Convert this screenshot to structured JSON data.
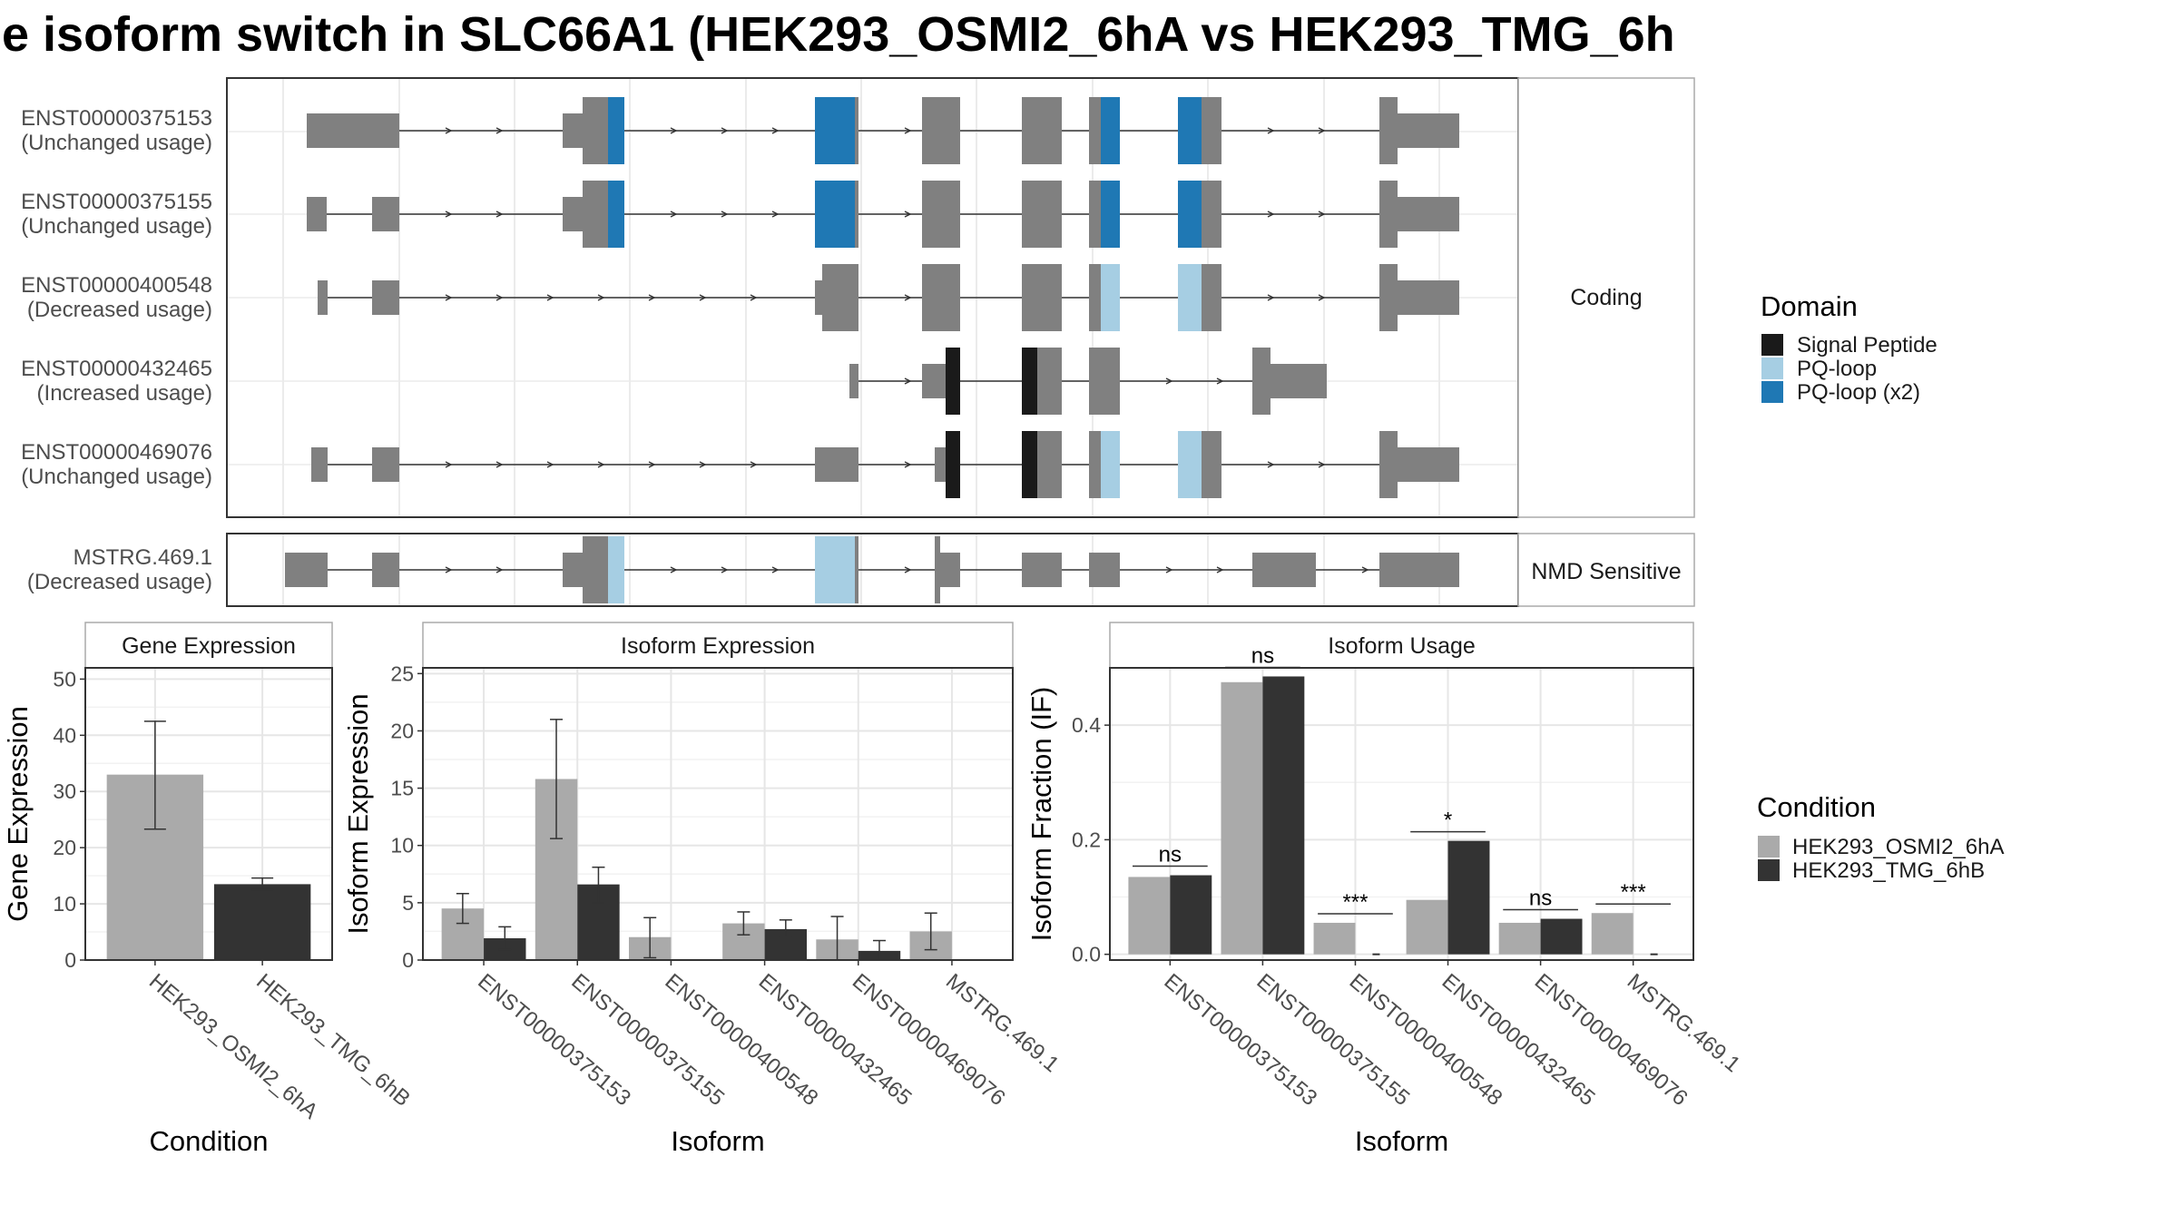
{
  "title": "e isoform switch in SLC66A1 (HEK293_OSMI2_6hA vs HEK293_TMG_6h",
  "colors": {
    "exon": "#808080",
    "signal_peptide": "#1a1a1a",
    "pq_loop": "#a6cee3",
    "pq_loop_x2": "#1f78b4",
    "cond1": "#aaaaaa",
    "cond2": "#333333"
  },
  "transcript_panel": {
    "coding_label": "Coding",
    "nmd_label": "NMD Sensitive",
    "transcripts": [
      {
        "id": "ENST00000375153",
        "usage": "(Unchanged usage)",
        "group": "coding"
      },
      {
        "id": "ENST00000375155",
        "usage": "(Unchanged usage)",
        "group": "coding"
      },
      {
        "id": "ENST00000400548",
        "usage": "(Decreased usage)",
        "group": "coding"
      },
      {
        "id": "ENST00000432465",
        "usage": "(Increased usage)",
        "group": "coding"
      },
      {
        "id": "ENST00000469076",
        "usage": "(Unchanged usage)",
        "group": "coding"
      },
      {
        "id": "MSTRG.469.1",
        "usage": "(Decreased usage)",
        "group": "nmd"
      }
    ]
  },
  "domain_legend": {
    "title": "Domain",
    "items": [
      {
        "label": "Signal Peptide",
        "color": "#1a1a1a"
      },
      {
        "label": "PQ-loop",
        "color": "#a6cee3"
      },
      {
        "label": "PQ-loop (x2)",
        "color": "#1f78b4"
      }
    ]
  },
  "condition_legend": {
    "title": "Condition",
    "items": [
      {
        "label": "HEK293_OSMI2_6hA",
        "color": "#aaaaaa"
      },
      {
        "label": "HEK293_TMG_6hB",
        "color": "#333333"
      }
    ]
  },
  "chart_data": [
    {
      "type": "bar",
      "panel_title": "Gene Expression",
      "xlabel": "Condition",
      "ylabel": "Gene Expression",
      "ylim": [
        0,
        52
      ],
      "yticks": [
        0,
        10,
        20,
        30,
        40,
        50
      ],
      "categories": [
        "HEK293_OSMI2_6hA",
        "HEK293_TMG_6hB"
      ],
      "values": [
        33,
        13.5
      ],
      "errors_low": [
        23.3,
        12.5
      ],
      "errors_high": [
        42.5,
        14.6
      ]
    },
    {
      "type": "bar",
      "panel_title": "Isoform Expression",
      "xlabel": "Isoform",
      "ylabel": "Isoform Expression",
      "ylim": [
        0,
        25.5
      ],
      "yticks": [
        0,
        5,
        10,
        15,
        20,
        25
      ],
      "categories": [
        "ENST00000375153",
        "ENST00000375155",
        "ENST00000400548",
        "ENST00000432465",
        "ENST00000469076",
        "MSTRG.469.1"
      ],
      "series": [
        {
          "name": "HEK293_OSMI2_6hA",
          "values": [
            4.5,
            15.8,
            2.0,
            3.2,
            1.8,
            2.5
          ],
          "err_low": [
            3.2,
            10.6,
            0.2,
            2.2,
            0.0,
            0.9
          ],
          "err_high": [
            5.8,
            21.0,
            3.7,
            4.2,
            3.8,
            4.1
          ]
        },
        {
          "name": "HEK293_TMG_6hB",
          "values": [
            1.9,
            6.6,
            0.0,
            2.7,
            0.8,
            0.0
          ],
          "err_low": [
            0.9,
            5.0,
            0.0,
            2.0,
            0.0,
            0.0
          ],
          "err_high": [
            2.9,
            8.1,
            0.0,
            3.5,
            1.7,
            0.0
          ]
        }
      ]
    },
    {
      "type": "bar",
      "panel_title": "Isoform Usage",
      "xlabel": "Isoform",
      "ylabel": "Isoform Fraction (IF)",
      "ylim": [
        -0.01,
        0.5
      ],
      "yticks": [
        0.0,
        0.2,
        0.4
      ],
      "ytick_labels": [
        "0.0",
        "0.2",
        "0.4"
      ],
      "categories": [
        "ENST00000375153",
        "ENST00000375155",
        "ENST00000400548",
        "ENST00000432465",
        "ENST00000469076",
        "MSTRG.469.1"
      ],
      "series": [
        {
          "name": "HEK293_OSMI2_6hA",
          "values": [
            0.135,
            0.475,
            0.055,
            0.095,
            0.055,
            0.072
          ]
        },
        {
          "name": "HEK293_TMG_6hB",
          "values": [
            0.138,
            0.485,
            0.0,
            0.198,
            0.062,
            0.0
          ]
        }
      ],
      "significance": [
        "ns",
        "ns",
        "***",
        "*",
        "ns",
        "***"
      ]
    }
  ]
}
